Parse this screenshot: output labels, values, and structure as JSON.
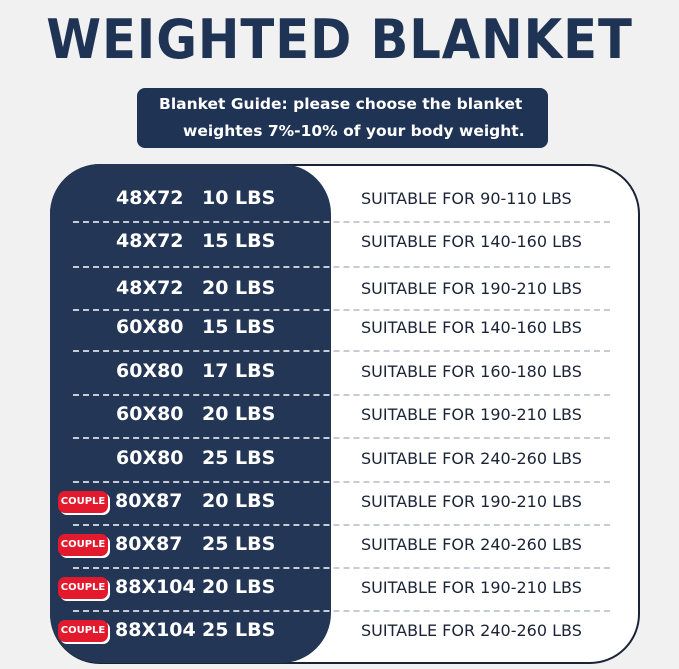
{
  "title": "WEIGHTED BLANKET",
  "guide": {
    "line1": "Blanket Guide: please choose the blanket",
    "line2": "weightes 7%-10% of your body weight."
  },
  "colors": {
    "navy": "#243655",
    "badge_red": "#e3192d"
  },
  "rows": [
    {
      "badge": "",
      "size": "48X72",
      "weight": "10 LBS",
      "suitable": "SUITABLE FOR 90-110 LBS"
    },
    {
      "badge": "",
      "size": "48X72",
      "weight": "15 LBS",
      "suitable": "SUITABLE FOR 140-160 LBS"
    },
    {
      "badge": "",
      "size": "48X72",
      "weight": "20 LBS",
      "suitable": "SUITABLE FOR 190-210 LBS"
    },
    {
      "badge": "",
      "size": "60X80",
      "weight": "15 LBS",
      "suitable": "SUITABLE FOR 140-160 LBS"
    },
    {
      "badge": "",
      "size": "60X80",
      "weight": "17 LBS",
      "suitable": "SUITABLE FOR 160-180 LBS"
    },
    {
      "badge": "",
      "size": "60X80",
      "weight": "20 LBS",
      "suitable": "SUITABLE FOR 190-210 LBS"
    },
    {
      "badge": "",
      "size": "60X80",
      "weight": "25 LBS",
      "suitable": "SUITABLE FOR 240-260 LBS"
    },
    {
      "badge": "COUPLE",
      "size": "80X87",
      "weight": "20 LBS",
      "suitable": "SUITABLE FOR 190-210 LBS"
    },
    {
      "badge": "COUPLE",
      "size": "80X87",
      "weight": "25 LBS",
      "suitable": "SUITABLE FOR 240-260 LBS"
    },
    {
      "badge": "COUPLE",
      "size": "88X104",
      "weight": "20 LBS",
      "suitable": "SUITABLE FOR 190-210 LBS"
    },
    {
      "badge": "COUPLE",
      "size": "88X104",
      "weight": "25 LBS",
      "suitable": "SUITABLE FOR 240-260 LBS"
    }
  ]
}
